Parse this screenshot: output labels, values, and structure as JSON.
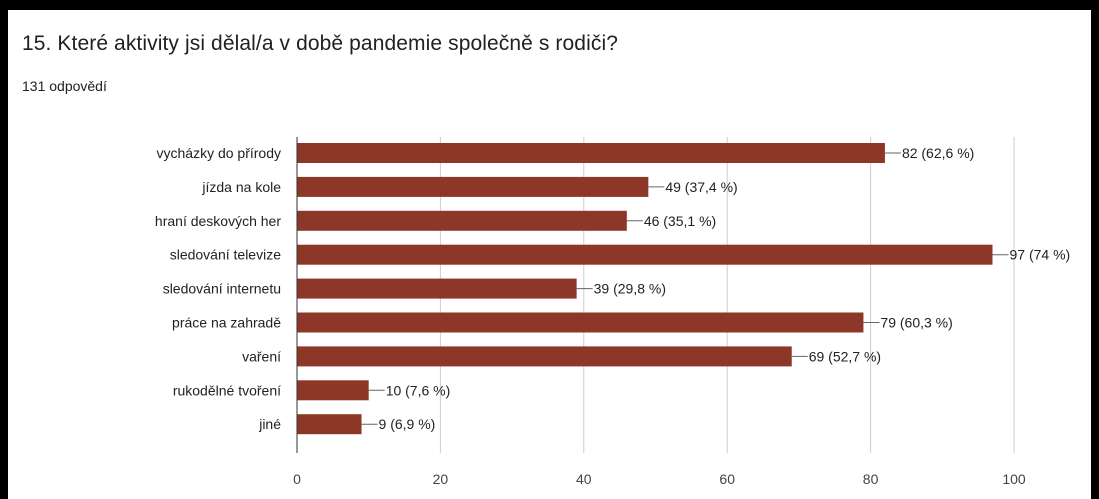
{
  "question": {
    "title": "15. Které aktivity jsi dělal/a v době pandemie společně s rodiči?",
    "response_count": "131 odpovědí"
  },
  "colors": {
    "bar": "#8d3728",
    "grid": "#cccccc",
    "axis": "#333333",
    "leader": "#666666"
  },
  "chart_data": {
    "type": "bar",
    "orientation": "horizontal",
    "categories": [
      "vycházky do přírody",
      "jízda na kole",
      "hraní deskových her",
      "sledování televize",
      "sledování internetu",
      "práce na zahradě",
      "vaření",
      "rukodělné tvoření",
      "jiné"
    ],
    "values": [
      82,
      49,
      46,
      97,
      39,
      79,
      69,
      10,
      9
    ],
    "value_labels": [
      "82 (62,6 %)",
      "49 (37,4 %)",
      "46 (35,1 %)",
      "97 (74 %)",
      "39 (29,8 %)",
      "79 (60,3 %)",
      "69 (52,7 %)",
      "10 (7,6 %)",
      "9 (6,9 %)"
    ],
    "xlim": [
      0,
      100
    ],
    "xticks": [
      0,
      20,
      40,
      60,
      80,
      100
    ],
    "grid": true,
    "legend": "none"
  }
}
